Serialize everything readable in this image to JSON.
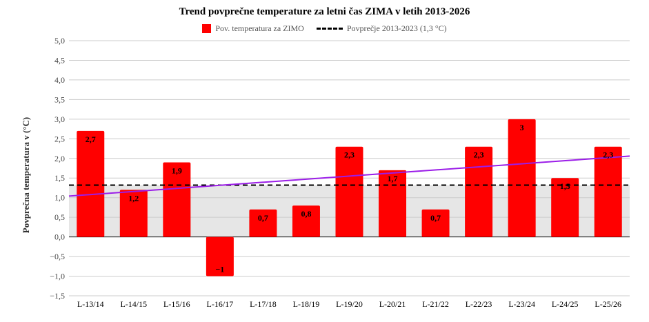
{
  "chart_data": {
    "type": "bar",
    "title": "Trend povprečne temperature za letni čas ZIMA v letih 2013-2026",
    "ylabel": "Povprečna temperatura v (°C)",
    "xlabel": "",
    "categories": [
      "L-13/14",
      "L-14/15",
      "L-15/16",
      "L-16/17",
      "L-17/18",
      "L-18/19",
      "L-19/20",
      "L-20/21",
      "L-21/22",
      "L-22/23",
      "L-23/24",
      "L-24/25",
      "L-25/26"
    ],
    "series": [
      {
        "name": "Pov. temperatura za ZIMO",
        "values": [
          2.7,
          1.2,
          1.9,
          -1,
          0.7,
          0.8,
          2.3,
          1.7,
          0.7,
          2.3,
          3,
          1.5,
          2.3
        ],
        "color": "#ff0000"
      }
    ],
    "data_labels": [
      "2,7",
      "1,2",
      "1,9",
      "−1",
      "0,7",
      "0,8",
      "2,3",
      "1,7",
      "0,7",
      "2,3",
      "3",
      "1,5",
      "2,3"
    ],
    "reference_line": {
      "name": "Povprečje 2013-2023 (1,3 °C)",
      "value": 1.32,
      "style": "dashed",
      "color": "#000000"
    },
    "trend_line": {
      "start": 1.04,
      "end": 2.06,
      "color": "#9b1de8"
    },
    "ylim": [
      -1.5,
      5.0
    ],
    "yticks": [
      "5,0",
      "4,5",
      "4,0",
      "3,5",
      "3,0",
      "2,5",
      "2,0",
      "1,5",
      "1,0",
      "0,5",
      "0,0",
      "−0,5",
      "−1,0",
      "−1,5"
    ],
    "shaded_band": {
      "from": 0,
      "to": 1.32,
      "color": "#e6e6e6"
    },
    "grid": true,
    "legend_position": "top"
  }
}
